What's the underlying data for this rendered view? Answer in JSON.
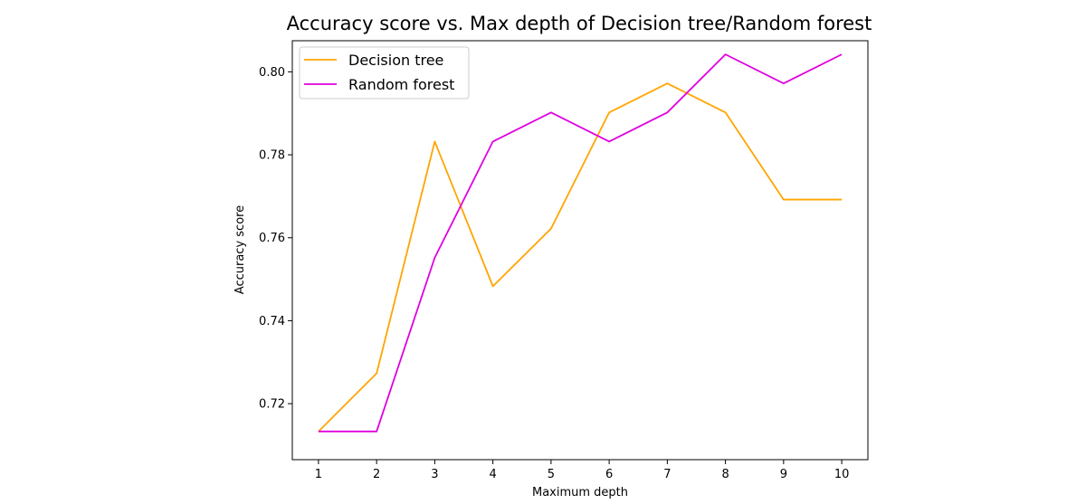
{
  "chart_data": {
    "type": "line",
    "title": "Accuracy score vs. Max depth of Decision tree/Random forest",
    "xlabel": "Maximum depth",
    "ylabel": "Accuracy score",
    "x": [
      1,
      2,
      3,
      4,
      5,
      6,
      7,
      8,
      9,
      10
    ],
    "xlim": [
      0.55,
      10.45
    ],
    "ylim": [
      0.7065,
      0.8075
    ],
    "xticks": [
      "1",
      "2",
      "3",
      "4",
      "5",
      "6",
      "7",
      "8",
      "9",
      "10"
    ],
    "yticks": [
      {
        "value": 0.72,
        "label": "0.72"
      },
      {
        "value": 0.74,
        "label": "0.74"
      },
      {
        "value": 0.76,
        "label": "0.76"
      },
      {
        "value": 0.78,
        "label": "0.78"
      },
      {
        "value": 0.8,
        "label": "0.80"
      }
    ],
    "grid": false,
    "legend_position": "upper-left",
    "series": [
      {
        "name": "Decision tree",
        "color": "#ffa500",
        "values": [
          0.7133,
          0.7273,
          0.7832,
          0.7483,
          0.7622,
          0.7902,
          0.7972,
          0.7902,
          0.7692,
          0.7692
        ]
      },
      {
        "name": "Random forest",
        "color": "#e000e0",
        "values": [
          0.7133,
          0.7133,
          0.7552,
          0.7832,
          0.7902,
          0.7832,
          0.7902,
          0.8042,
          0.7972,
          0.8042
        ]
      }
    ]
  }
}
